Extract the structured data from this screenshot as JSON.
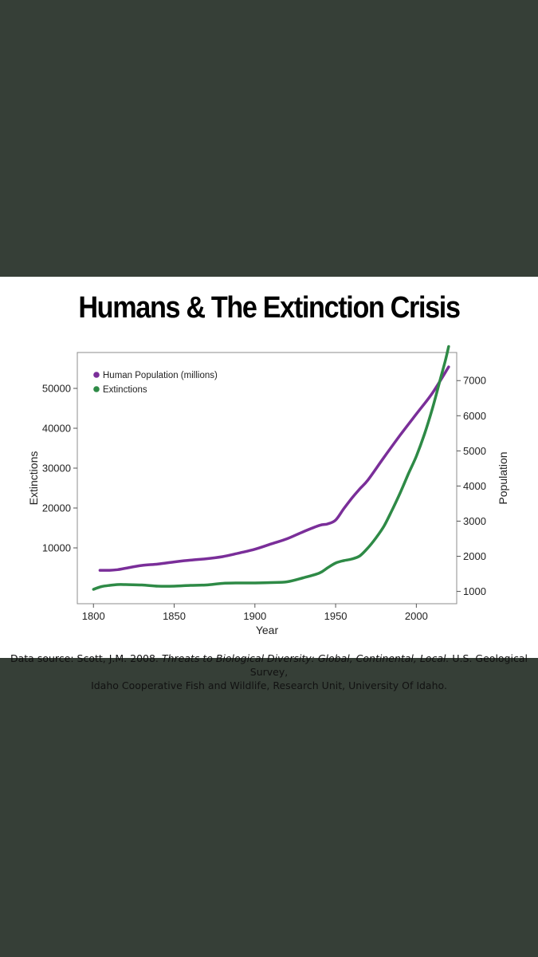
{
  "colors": {
    "background": "#363f37",
    "card": "#ffffff"
  },
  "chart_data": {
    "type": "line",
    "title": "Humans & The Extinction Crisis",
    "xlabel": "Year",
    "ylabel_left": "Extinctions",
    "ylabel_right": "Population",
    "xlim": [
      1790,
      2025
    ],
    "ylim_left": [
      -4000,
      59000
    ],
    "ylim_right": [
      650,
      7800
    ],
    "xticks": [
      1800,
      1850,
      1900,
      1950,
      2000
    ],
    "yticks_left": [
      10000,
      20000,
      30000,
      40000,
      50000
    ],
    "yticks_right": [
      1000,
      2000,
      3000,
      4000,
      5000,
      6000,
      7000
    ],
    "legend_position": "top-left",
    "grid": false,
    "series": [
      {
        "name": "Human Population (millions)",
        "axis": "right",
        "color": "#7a2e99",
        "x": [
          1804,
          1810,
          1815,
          1820,
          1830,
          1840,
          1850,
          1860,
          1870,
          1880,
          1890,
          1900,
          1910,
          1920,
          1930,
          1940,
          1945,
          1950,
          1955,
          1960,
          1965,
          1970,
          1980,
          1990,
          2000,
          2010,
          2020
        ],
        "values": [
          1600,
          1600,
          1620,
          1660,
          1740,
          1780,
          1840,
          1890,
          1930,
          1990,
          2090,
          2200,
          2350,
          2500,
          2700,
          2880,
          2920,
          3030,
          3350,
          3650,
          3920,
          4170,
          4820,
          5450,
          6050,
          6650,
          7390
        ]
      },
      {
        "name": "Extinctions",
        "axis": "left",
        "color": "#2e8a46",
        "x": [
          1800,
          1805,
          1810,
          1815,
          1820,
          1830,
          1840,
          1850,
          1860,
          1870,
          1880,
          1890,
          1900,
          1910,
          1920,
          1930,
          1940,
          1945,
          1950,
          1955,
          1960,
          1965,
          1970,
          1975,
          1980,
          1985,
          1990,
          1995,
          2000,
          2005,
          2010,
          2015,
          2018,
          2020
        ],
        "values": [
          -400,
          300,
          600,
          800,
          800,
          700,
          400,
          400,
          600,
          700,
          1100,
          1200,
          1200,
          1300,
          1500,
          2500,
          3700,
          5000,
          6200,
          6800,
          7200,
          8000,
          10000,
          12500,
          15500,
          19500,
          23800,
          28500,
          33000,
          38500,
          45000,
          52500,
          57000,
          60500
        ]
      }
    ]
  },
  "source": {
    "prefix": "Data source: Scott, J.M. 2008. ",
    "italic": "Threats to Biological Diversity: Global, Continental, Local.",
    "suffix": " U.S. Geological Survey,",
    "line2": "Idaho Cooperative Fish and Wildlife, Research Unit, University Of Idaho."
  }
}
